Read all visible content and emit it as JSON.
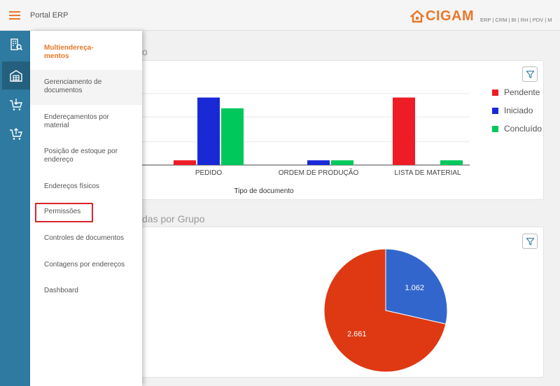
{
  "topbar": {
    "title": "Portal ERP",
    "brand": "CIGAM",
    "modules": "ERP | CRM | BI | RH | PDV | M"
  },
  "rail": {
    "items": [
      {
        "icon": "building-search-icon",
        "active": false
      },
      {
        "icon": "warehouse-icon",
        "active": true
      },
      {
        "icon": "cart-download-icon",
        "active": false
      },
      {
        "icon": "cart-upload-icon",
        "active": false
      }
    ]
  },
  "drawer": {
    "items": [
      {
        "label": "Multiendereça-\nmentos",
        "header": true
      },
      {
        "label": "Gerenciamento de documentos"
      },
      {
        "label": "Endereçamentos por material"
      },
      {
        "label": "Posição de estoque por endereço"
      },
      {
        "label": "Endereços físicos"
      },
      {
        "label": "Permissões"
      },
      {
        "label": "Controles de documentos"
      },
      {
        "label": "Contagens por endereços"
      },
      {
        "label": "Dashboard"
      }
    ]
  },
  "main": {
    "section1_title_fragment": "o",
    "section2_title_fragment": "das por Grupo"
  },
  "colors": {
    "accent": "#e8782a",
    "rail": "#2e7aa0",
    "pendente": "#ee1c25",
    "iniciado": "#1a29d6",
    "concluido": "#00c85a",
    "pie_red": "#de3913",
    "pie_blue": "#3366cc",
    "highlight": "#d9252a"
  },
  "chart_data": [
    {
      "type": "bar",
      "xlabel": "Tipo de documento",
      "categories": [
        "PEDIDO",
        "ORDEM DE PRODUÇÃO",
        "LISTA DE MATERIAL"
      ],
      "series": [
        {
          "name": "Pendente",
          "values": [
            7,
            0,
            100
          ],
          "color": "#ee1c25"
        },
        {
          "name": "Iniciado",
          "values": [
            100,
            7,
            0
          ],
          "color": "#1a29d6"
        },
        {
          "name": "Concluído",
          "values": [
            84,
            7,
            7
          ],
          "color": "#00c85a"
        }
      ],
      "ylim": [
        0,
        115
      ],
      "grid": true,
      "legend": "right"
    },
    {
      "type": "pie",
      "slices": [
        {
          "label": "1.062",
          "value": 1062,
          "color": "#3366cc"
        },
        {
          "label": "2.661",
          "value": 2661,
          "color": "#de3913"
        }
      ]
    }
  ]
}
